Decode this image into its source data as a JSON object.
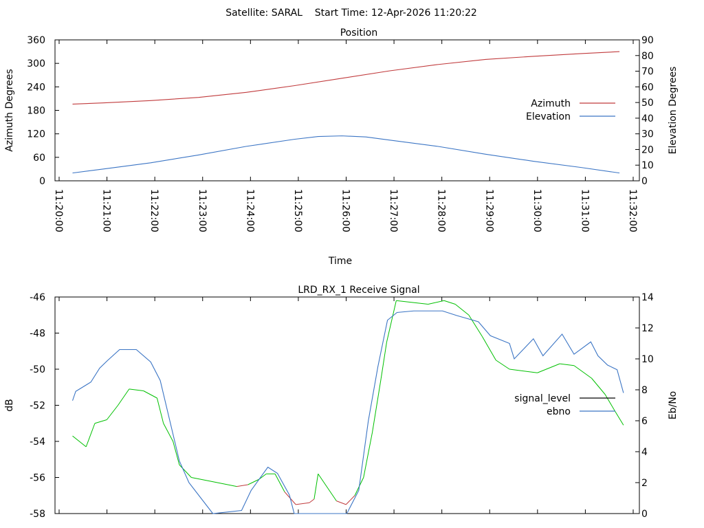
{
  "header": {
    "title": "Satellite: SARAL    Start Time: 12-Apr-2026 11:20:22"
  },
  "colors": {
    "azimuth": "#c0393b",
    "elevation": "#3a74c4",
    "signal": "#00c000",
    "signal_low": "#c0393b",
    "ebno": "#3a74c4",
    "legend_signal": "#000000"
  },
  "chart_data": [
    {
      "type": "line",
      "title": "Position",
      "xlabel": "Time",
      "ylabel": "Azimuth Degrees",
      "y2label": "Elevation Degrees",
      "xlim": [
        "11:20:00",
        "11:32:00"
      ],
      "xticks": [
        "11:20:00",
        "11:21:00",
        "11:22:00",
        "11:23:00",
        "11:24:00",
        "11:25:00",
        "11:26:00",
        "11:27:00",
        "11:28:00",
        "11:29:00",
        "11:30:00",
        "11:31:00",
        "11:32:00"
      ],
      "ylim": [
        0,
        360
      ],
      "yticks": [
        0,
        60,
        120,
        180,
        240,
        300,
        360
      ],
      "y2lim": [
        0,
        90
      ],
      "y2ticks": [
        0,
        10,
        20,
        30,
        40,
        50,
        60,
        70,
        80,
        90
      ],
      "legend_position": "right",
      "series": [
        {
          "name": "Azimuth",
          "axis": "y",
          "color_key": "azimuth",
          "x": [
            "11:20:22",
            "11:21:00",
            "11:22:00",
            "11:23:00",
            "11:24:00",
            "11:25:00",
            "11:26:00",
            "11:27:00",
            "11:28:00",
            "11:29:00",
            "11:30:00",
            "11:31:00",
            "11:31:48"
          ],
          "values": [
            196,
            199,
            205,
            213,
            226,
            243,
            262,
            281,
            297,
            310,
            318,
            325,
            330
          ]
        },
        {
          "name": "Elevation",
          "axis": "y2",
          "color_key": "elevation",
          "x": [
            "11:20:22",
            "11:21:00",
            "11:22:00",
            "11:23:00",
            "11:24:00",
            "11:25:00",
            "11:25:30",
            "11:26:00",
            "11:26:30",
            "11:27:00",
            "11:28:00",
            "11:29:00",
            "11:30:00",
            "11:31:00",
            "11:31:48"
          ],
          "values": [
            5,
            7.5,
            11.5,
            16.5,
            22,
            26.5,
            28.3,
            28.7,
            28,
            26,
            22,
            17,
            12.5,
            8.5,
            5
          ]
        }
      ]
    },
    {
      "type": "line",
      "title": "LRD_RX_1 Receive Signal",
      "ylabel": "dB",
      "y2label": "Eb/No",
      "xlim": [
        "11:20:00",
        "11:32:00"
      ],
      "ylim": [
        -58,
        -46
      ],
      "yticks": [
        -58,
        -56,
        -54,
        -52,
        -50,
        -48,
        -46
      ],
      "y2lim": [
        0,
        14
      ],
      "y2ticks": [
        0,
        2,
        4,
        6,
        8,
        10,
        12,
        14
      ],
      "legend_position": "right",
      "series": [
        {
          "name": "signal_level",
          "axis": "y",
          "color_key": "signal",
          "legend_color_key": "legend_signal",
          "x": [
            "11:20:22",
            "11:20:39",
            "11:20:50",
            "11:21:05",
            "11:21:19",
            "11:21:33",
            "11:21:51",
            "11:22:08",
            "11:22:16",
            "11:22:28",
            "11:22:36",
            "11:22:51",
            "11:23:14",
            "11:23:48",
            "11:24:02",
            "11:24:16",
            "11:24:25",
            "11:24:36",
            "11:24:48",
            "11:25:02",
            "11:25:19",
            "11:25:25",
            "11:25:30",
            "11:25:53",
            "11:26:05",
            "11:26:16",
            "11:26:27",
            "11:26:38",
            "11:26:49",
            "11:26:56",
            "11:27:08",
            "11:27:48",
            "11:28:08",
            "11:28:22",
            "11:28:39",
            "11:28:56",
            "11:29:13",
            "11:29:30",
            "11:30:05",
            "11:30:33",
            "11:30:51",
            "11:31:13",
            "11:31:30",
            "11:31:42",
            "11:31:53"
          ],
          "values": [
            -53.7,
            -54.3,
            -53.0,
            -52.8,
            -52.0,
            -51.1,
            -51.2,
            -51.6,
            -53.0,
            -54.0,
            -55.3,
            -56.0,
            -56.2,
            -56.5,
            -56.4,
            -56.1,
            -55.8,
            -55.8,
            -56.8,
            -57.5,
            -57.4,
            -57.2,
            -55.8,
            -57.3,
            -57.5,
            -57.0,
            -56.0,
            -53.5,
            -50.5,
            -48.5,
            -46.2,
            -46.4,
            -46.2,
            -46.4,
            -47.0,
            -48.2,
            -49.5,
            -50.0,
            -50.2,
            -49.7,
            -49.8,
            -50.5,
            -51.4,
            -52.3,
            -53.1
          ]
        },
        {
          "name": "ebno",
          "axis": "y2",
          "color_key": "ebno",
          "x": [
            "11:20:22",
            "11:20:26",
            "11:20:45",
            "11:20:56",
            "11:21:06",
            "11:21:21",
            "11:21:42",
            "11:22:00",
            "11:22:12",
            "11:22:24",
            "11:22:36",
            "11:22:48",
            "11:23:06",
            "11:23:18",
            "11:23:54",
            "11:24:06",
            "11:24:27",
            "11:24:39",
            "11:24:54",
            "11:25:00",
            "11:26:06",
            "11:26:21",
            "11:26:33",
            "11:26:45",
            "11:26:57",
            "11:27:09",
            "11:27:30",
            "11:28:06",
            "11:28:24",
            "11:28:51",
            "11:29:06",
            "11:29:30",
            "11:29:36",
            "11:30:00",
            "11:30:12",
            "11:30:36",
            "11:30:51",
            "11:31:12",
            "11:31:21",
            "11:31:33",
            "11:31:45",
            "11:31:53"
          ],
          "values": [
            7.3,
            7.9,
            8.5,
            9.4,
            9.9,
            10.6,
            10.6,
            9.8,
            8.6,
            6.0,
            3.4,
            2.0,
            0.8,
            0.0,
            0.2,
            1.5,
            3.0,
            2.6,
            1.2,
            0.0,
            0.0,
            1.5,
            6.0,
            9.5,
            12.5,
            13.0,
            13.1,
            13.1,
            12.8,
            12.4,
            11.5,
            11.0,
            10.0,
            11.3,
            10.2,
            11.6,
            10.3,
            11.1,
            10.2,
            9.6,
            9.3,
            7.8
          ]
        }
      ]
    }
  ]
}
